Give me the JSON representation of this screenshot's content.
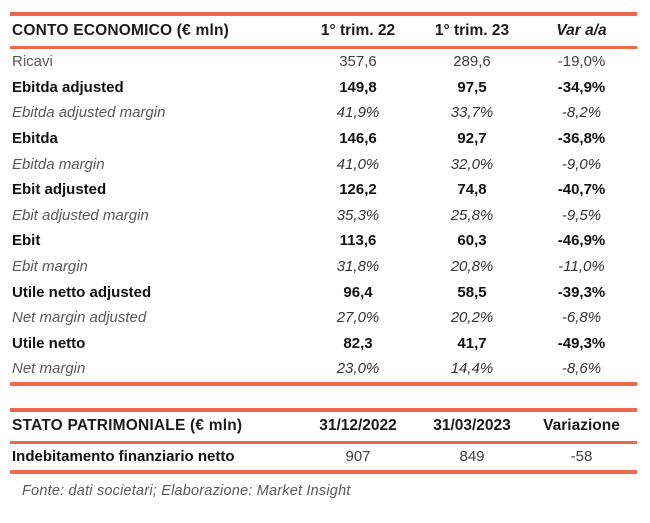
{
  "accent_color": "#F0684C",
  "income": {
    "title": "CONTO ECONOMICO (€ mln)",
    "columns": [
      "1° trim. 22",
      "1° trim. 23",
      "Var a/a"
    ],
    "rows": [
      {
        "label": "Ricavi",
        "v1": "357,6",
        "v2": "289,6",
        "var": "-19,0%"
      },
      {
        "label": "Ebitda adjusted",
        "v1": "149,8",
        "v2": "97,5",
        "var": "-34,9%"
      },
      {
        "label": "Ebitda adjusted margin",
        "v1": "41,9%",
        "v2": "33,7%",
        "var": "-8,2%"
      },
      {
        "label": "Ebitda",
        "v1": "146,6",
        "v2": "92,7",
        "var": "-36,8%"
      },
      {
        "label": "Ebitda margin",
        "v1": "41,0%",
        "v2": "32,0%",
        "var": "-9,0%"
      },
      {
        "label": "Ebit adjusted",
        "v1": "126,2",
        "v2": "74,8",
        "var": "-40,7%"
      },
      {
        "label": "Ebit adjusted margin",
        "v1": "35,3%",
        "v2": "25,8%",
        "var": "-9,5%"
      },
      {
        "label": "Ebit",
        "v1": "113,6",
        "v2": "60,3",
        "var": "-46,9%"
      },
      {
        "label": "Ebit margin",
        "v1": "31,8%",
        "v2": "20,8%",
        "var": "-11,0%"
      },
      {
        "label": "Utile netto adjusted",
        "v1": "96,4",
        "v2": "58,5",
        "var": "-39,3%"
      },
      {
        "label": "Net margin adjusted",
        "v1": "27,0%",
        "v2": "20,2%",
        "var": "-6,8%"
      },
      {
        "label": "Utile netto",
        "v1": "82,3",
        "v2": "41,7",
        "var": "-49,3%"
      },
      {
        "label": "Net margin",
        "v1": "23,0%",
        "v2": "14,4%",
        "var": "-8,6%"
      }
    ]
  },
  "balance": {
    "title": "STATO PATRIMONIALE (€ mln)",
    "columns": [
      "31/12/2022",
      "31/03/2023",
      "Variazione"
    ],
    "rows": [
      {
        "label": "Indebitamento finanziario netto",
        "v1": "907",
        "v2": "849",
        "var": "-58"
      }
    ]
  },
  "footer": {
    "source_note": "Fonte: dati societari; Elaborazione: Market Insight"
  }
}
